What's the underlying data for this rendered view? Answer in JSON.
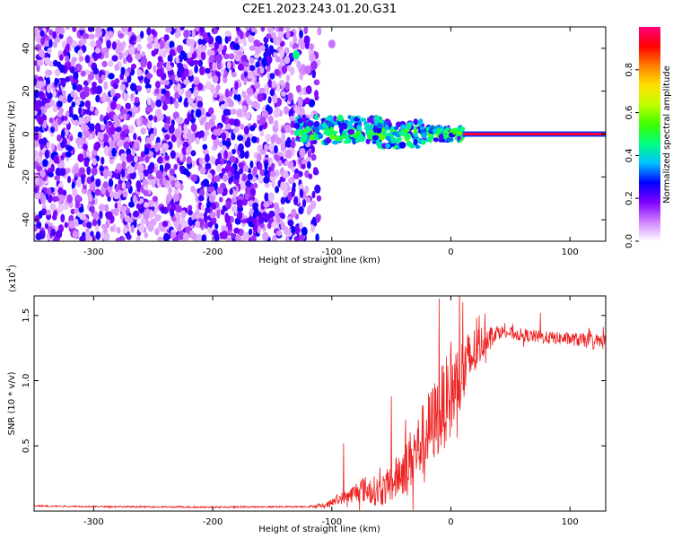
{
  "figure_title": "C2E1.2023.243.01.20.G31",
  "chart_data": [
    {
      "type": "heatmap",
      "xlabel": "Height of straight line (km)",
      "ylabel": "Frequency (Hz)",
      "xlim": [
        -350,
        130
      ],
      "ylim": [
        -50,
        50
      ],
      "x_ticks": [
        -300,
        -200,
        -100,
        0,
        100
      ],
      "y_ticks": [
        -40,
        -20,
        0,
        20,
        40
      ],
      "colorbar": {
        "label": "Normalized spectral amplitude",
        "range": [
          0,
          1
        ],
        "ticks": [
          "0.0",
          "0.2",
          "0.4",
          "0.6",
          "0.8"
        ],
        "tick_values": [
          0.0,
          0.2,
          0.4,
          0.6,
          0.8
        ],
        "colors": [
          "#ffffff",
          "#d080ff",
          "#8000ff",
          "#0000ff",
          "#00c0ff",
          "#00ff80",
          "#40ff00",
          "#c0ff00",
          "#ffe000",
          "#ff8000",
          "#ff0000",
          "#ff0080"
        ]
      },
      "features": {
        "noise_band_x": [
          -350,
          -110
        ],
        "noise_band_freq": [
          -50,
          50
        ],
        "signal_line_freq": 0,
        "signal_line_x": [
          -130,
          130
        ],
        "strong_signal_x": [
          10,
          130
        ],
        "strong_signal_amplitude": 0.95,
        "sparse_cluster": [
          {
            "x": -130,
            "freq": 37,
            "amplitude": 0.45
          },
          {
            "x": -100,
            "freq": 42,
            "amplitude": 0.1
          },
          {
            "x": -115,
            "freq": 32,
            "amplitude": 0.15
          },
          {
            "x": -120,
            "freq": 30,
            "amplitude": 0.1
          }
        ]
      }
    },
    {
      "type": "line",
      "xlabel": "Height of straight line (km)",
      "ylabel": "SNR (10 * v/v)",
      "y_multiplier": "(x10",
      "y_exponent": "4",
      "y_multiplier_close": ")",
      "xlim": [
        -350,
        130
      ],
      "ylim": [
        0,
        1.65
      ],
      "x_ticks": [
        -300,
        -200,
        -100,
        0,
        100
      ],
      "y_ticks": [
        0.5,
        1.0,
        1.5
      ],
      "y_tick_labels": [
        "0.5",
        "1.0",
        "1.5"
      ],
      "color": "#ee2222",
      "envelope": {
        "x": [
          -350,
          -300,
          -200,
          -120,
          -105,
          -95,
          -85,
          -75,
          -60,
          -50,
          -40,
          -30,
          -20,
          -10,
          0,
          10,
          20,
          30,
          40,
          60,
          80,
          100,
          120,
          130
        ],
        "base": [
          0.04,
          0.035,
          0.03,
          0.035,
          0.04,
          0.09,
          0.12,
          0.17,
          0.15,
          0.2,
          0.32,
          0.45,
          0.6,
          0.75,
          0.9,
          1.05,
          1.22,
          1.33,
          1.38,
          1.35,
          1.33,
          1.32,
          1.3,
          1.3
        ],
        "noise": [
          0.006,
          0.006,
          0.006,
          0.006,
          0.02,
          0.04,
          0.06,
          0.1,
          0.12,
          0.15,
          0.2,
          0.25,
          0.3,
          0.33,
          0.35,
          0.3,
          0.2,
          0.1,
          0.05,
          0.05,
          0.05,
          0.05,
          0.06,
          0.06
        ]
      },
      "peaks": [
        {
          "x": -90,
          "y": 0.52
        },
        {
          "x": -50,
          "y": 0.88
        },
        {
          "x": -38,
          "y": 0.7
        },
        {
          "x": -10,
          "y": 1.63
        },
        {
          "x": 0,
          "y": 1.3
        },
        {
          "x": 10,
          "y": 1.6
        },
        {
          "x": 75,
          "y": 1.52
        }
      ]
    }
  ]
}
